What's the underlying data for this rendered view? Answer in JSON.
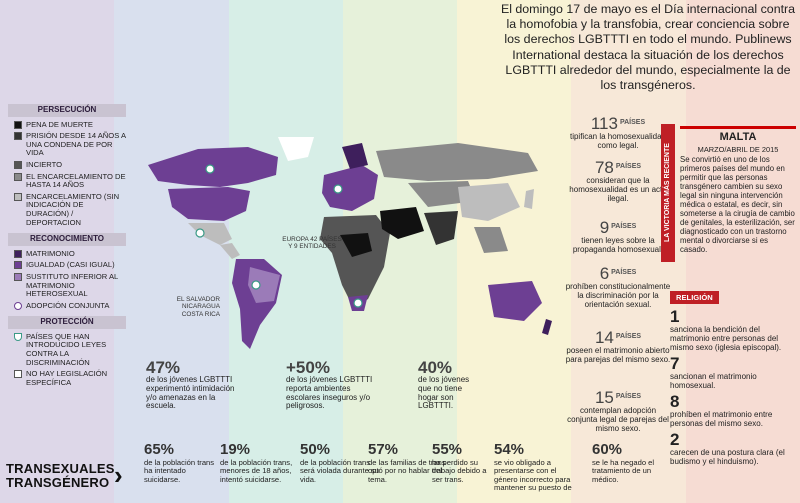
{
  "colors": {
    "bands": [
      "#ddd7e8",
      "#d9e0ee",
      "#d7eee7",
      "#e6f1da",
      "#f8f3d5",
      "#f7e8d8",
      "#f6dcd3"
    ],
    "map_ocean": "none",
    "death": "#111111",
    "prison_long": "#333333",
    "uncertain": "#555555",
    "prison_14": "#8a8a8a",
    "prison_unspecified": "#bdbdbd",
    "marriage": "#3e1f5c",
    "equality": "#6d3f93",
    "substitute": "#9b7bb8",
    "accent_red": "#bf1f25"
  },
  "intro": "El domingo 17 de mayo es el Día internacional contra la homofobia y la transfobia, crear conciencia sobre los derechos LGBTTTI en todo el mundo. Publinews International destaca la situación de los derechos LGBTTTI alrededor del mundo, especialmente la de los transgéneros.",
  "legend": {
    "persecucion": {
      "title": "PERSECUCIÓN",
      "items": [
        {
          "label": "PENA DE MUERTE",
          "color": "#111111"
        },
        {
          "label": "PRISIÓN DESDE 14 AÑOS A UNA CONDENA DE POR VIDA",
          "color": "#333333"
        },
        {
          "label": "INCIERTO",
          "color": "#555555"
        },
        {
          "label": "EL ENCARCELAMIENTO DE HASTA 14 AÑOS",
          "color": "#8a8a8a"
        },
        {
          "label": "ENCARCELAMIENTO (SIN INDICACIÓN DE DURACIÓN) / DEPORTACION",
          "color": "#bdbdbd"
        }
      ]
    },
    "reconocimiento": {
      "title": "RECONOCIMIENTO",
      "items": [
        {
          "label": "MATRIMONIO",
          "color": "#3e1f5c"
        },
        {
          "label": "IGUALDAD (CASI IGUAL)",
          "color": "#6d3f93"
        },
        {
          "label": "SUSTITUTO INFERIOR AL MATRIMONIO HETEROSEXUAL",
          "color": "#9b7bb8"
        },
        {
          "label": "ADOPCIÓN CONJUNTA",
          "color": "#ffffff"
        }
      ]
    },
    "proteccion": {
      "title": "PROTECCIÓN",
      "items": [
        {
          "label": "PAÍSES QUE HAN INTRODUCIDO LEYES CONTRA LA DISCRIMINACIÓN",
          "color": "#ffffff"
        },
        {
          "label": "NO HAY LEGISLACIÓN ESPECÍFICA",
          "color": "#ffffff"
        }
      ]
    }
  },
  "map_labels": {
    "europa": "EUROPA 42 PAÍSES Y 9 ENTIDADES",
    "central": "EL SALVADOR NICARAGUA COSTA RICA"
  },
  "mid_stats": [
    {
      "num": "47%",
      "text": "de los jóvenes LGBTTTI experimentó intimidación y/o amenazas en la escuela."
    },
    {
      "num": "+50%",
      "text": "de los jóvenes LGBTTTI reporta ambientes escolares inseguros y/o peligrosos."
    },
    {
      "num": "40%",
      "text": "de los jóvenes que no tiene hogar son LGBTTTI."
    }
  ],
  "trans_title": "TRANSEXUALES TRANSGÉNERO",
  "bottom_stats": [
    {
      "num": "65%",
      "text": "de la población trans ha intentado suicidarse."
    },
    {
      "num": "19%",
      "text": "de la población trans, menores de 18 años, intentó suicidarse."
    },
    {
      "num": "50%",
      "text": "de la población trans será violada durante su vida."
    },
    {
      "num": "57%",
      "text": "de las familias de trans optó por no hablar del tema."
    },
    {
      "num": "55%",
      "text": "ha perdido su trabajo debido a ser trans."
    },
    {
      "num": "54%",
      "text": "se vio obligado a presentarse con el género incorrecto para mantener su puesto de"
    },
    {
      "num": "60%",
      "text": "se le ha negado el tratamiento de un médico."
    }
  ],
  "country_counts": [
    {
      "num": "113",
      "unit": "PAÍSES",
      "text": "tipifican la homosexualidad como legal."
    },
    {
      "num": "78",
      "unit": "PAÍSES",
      "text": "consideran que la homosexualidad es un acto ilegal."
    },
    {
      "num": "9",
      "unit": "PAÍSES",
      "text": "tienen leyes sobre la propaganda homosexual."
    },
    {
      "num": "6",
      "unit": "PAÍSES",
      "text": "prohíben constitucionalmente la discriminación por la orientación sexual."
    },
    {
      "num": "14",
      "unit": "PAÍSES",
      "text": "poseen el matrimonio abierto para parejas del mismo sexo."
    },
    {
      "num": "15",
      "unit": "PAÍSES",
      "text": "contemplan adopción conjunta legal de parejas del mismo sexo."
    }
  ],
  "victoria": "LA VICTORIA MÁS RECIENTE",
  "malta": {
    "title": "MALTA",
    "date": "MARZO/ABRIL DE 2015",
    "text": "Se convirtió en uno de los primeros países del mundo en permitir que las personas transgénero cambien su sexo legal sin ninguna intervención médica o estatal, es decir, sin someterse a la cirugía de cambio de genitales, la esterilización, ser diagnosticado con un trastorno mental o divorciarse si es casado."
  },
  "religion": {
    "title": "RELIGIÓN",
    "items": [
      {
        "num": "1",
        "text": "sanciona la bendición del matrimonio entre personas del mismo sexo (iglesia episcopal)."
      },
      {
        "num": "7",
        "text": "sancionan el matrimonio homosexual."
      },
      {
        "num": "8",
        "text": "prohíben el matrimonio entre personas del mismo sexo."
      },
      {
        "num": "2",
        "text": "carecen de una postura clara (el budismo y el hinduismo)."
      }
    ]
  }
}
